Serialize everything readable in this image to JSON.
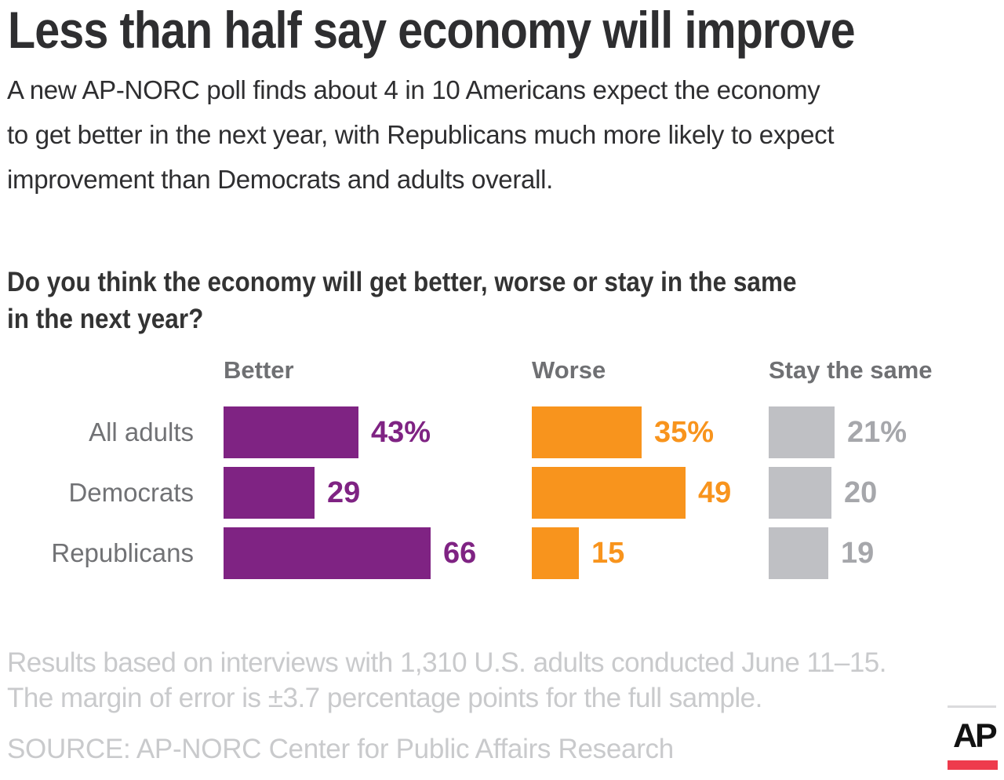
{
  "title": "Less than half say economy will improve",
  "subtitle_lines": [
    "A new AP-NORC poll finds about 4 in 10  Americans expect the economy",
    "to get better in the next year, with Republicans much more likely to expect",
    "improvement than Democrats and adults overall."
  ],
  "question_lines": [
    "Do you think the economy will get better, worse or stay in the same",
    "in the next year?"
  ],
  "chart_data": {
    "type": "bar",
    "orientation": "horizontal",
    "title": "Do you think the economy will get better, worse or stay in the same in the next year?",
    "categories": [
      "All adults",
      "Democrats",
      "Republicans"
    ],
    "series": [
      {
        "name": "Better",
        "values": [
          43,
          29,
          66
        ],
        "labels": [
          "43%",
          "29",
          "66"
        ],
        "bar_color": "#7f2383",
        "label_color": "#7f2383"
      },
      {
        "name": "Worse",
        "values": [
          35,
          49,
          15
        ],
        "labels": [
          "35%",
          "49",
          "15"
        ],
        "bar_color": "#f8941d",
        "label_color": "#f8941d"
      },
      {
        "name": "Stay the same",
        "values": [
          21,
          20,
          19
        ],
        "labels": [
          "21%",
          "20",
          "19"
        ],
        "bar_color": "#bfc0c4",
        "label_color": "#a6a7ab"
      }
    ],
    "xlim": [
      0,
      100
    ],
    "grid": false,
    "legend_position": "column-headers-above-bars",
    "value_label_style": "right-of-bar"
  },
  "footnote_lines": [
    "Results based on interviews with 1,310 U.S. adults conducted June 11–15.",
    "The margin of error is ±3.7 percentage points for the full sample."
  ],
  "source": "SOURCE: AP-NORC Center for Public Affairs Research",
  "logo": {
    "text": "AP",
    "red_bar_color": "#ee3b4d",
    "rule_color": "#dbdbdd"
  },
  "colors": {
    "title_text": "#2e2e30",
    "question_text": "#333333",
    "column_header_gray": "#6f7073",
    "row_label_gray": "#717275",
    "footnote_gray": "#c9cacc",
    "background": "#ffffff"
  }
}
